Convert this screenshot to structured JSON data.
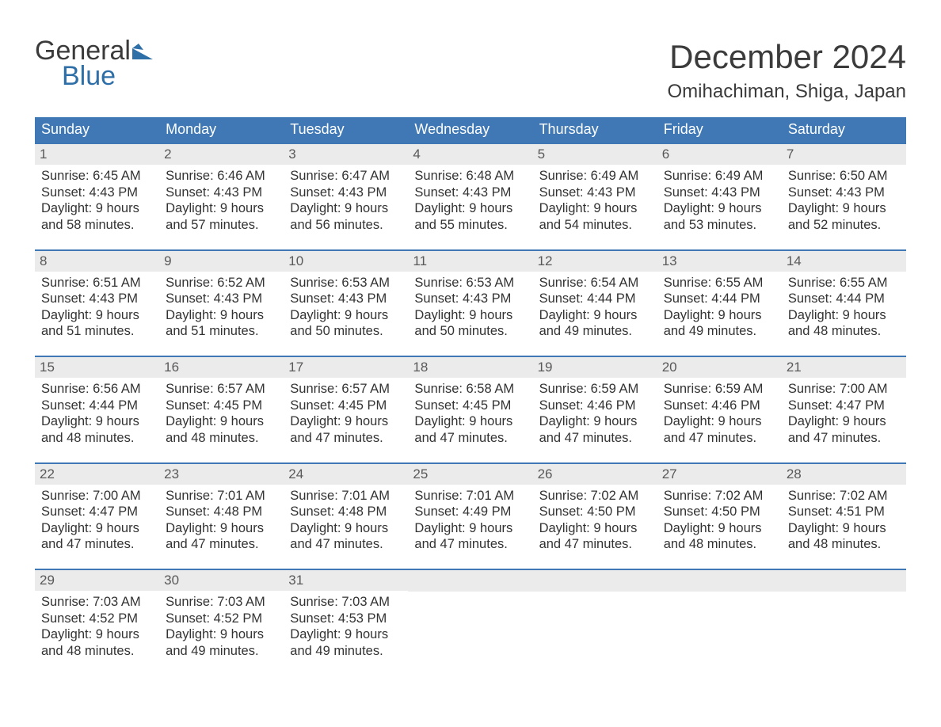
{
  "logo": {
    "line1": "General",
    "line2": "Blue",
    "mark_color": "#2f6fa8",
    "text_color_dark": "#3b3b3b",
    "text_color_accent": "#2f6fa8"
  },
  "title": "December 2024",
  "location": "Omihachiman, Shiga, Japan",
  "colors": {
    "accent": "#3f78b5",
    "header_text": "#ffffff",
    "daynum_bg": "#ebebeb",
    "daynum_text": "#595959",
    "body_text": "#333333",
    "page_bg": "#ffffff"
  },
  "typography": {
    "title_fontsize": 42,
    "location_fontsize": 24,
    "header_fontsize": 18,
    "cell_fontsize": 16.5,
    "daynum_fontsize": 17
  },
  "columns": [
    "Sunday",
    "Monday",
    "Tuesday",
    "Wednesday",
    "Thursday",
    "Friday",
    "Saturday"
  ],
  "field_labels": {
    "sunrise": "Sunrise",
    "sunset": "Sunset",
    "daylight_prefix": "Daylight",
    "daylight_unit_line1": "hours",
    "daylight_unit_line2_prefix": "and",
    "daylight_unit_line2_suffix": "minutes."
  },
  "weeks": [
    [
      {
        "day": 1,
        "sunrise": "6:45 AM",
        "sunset": "4:43 PM",
        "daylight": "9 hours and 58 minutes."
      },
      {
        "day": 2,
        "sunrise": "6:46 AM",
        "sunset": "4:43 PM",
        "daylight": "9 hours and 57 minutes."
      },
      {
        "day": 3,
        "sunrise": "6:47 AM",
        "sunset": "4:43 PM",
        "daylight": "9 hours and 56 minutes."
      },
      {
        "day": 4,
        "sunrise": "6:48 AM",
        "sunset": "4:43 PM",
        "daylight": "9 hours and 55 minutes."
      },
      {
        "day": 5,
        "sunrise": "6:49 AM",
        "sunset": "4:43 PM",
        "daylight": "9 hours and 54 minutes."
      },
      {
        "day": 6,
        "sunrise": "6:49 AM",
        "sunset": "4:43 PM",
        "daylight": "9 hours and 53 minutes."
      },
      {
        "day": 7,
        "sunrise": "6:50 AM",
        "sunset": "4:43 PM",
        "daylight": "9 hours and 52 minutes."
      }
    ],
    [
      {
        "day": 8,
        "sunrise": "6:51 AM",
        "sunset": "4:43 PM",
        "daylight": "9 hours and 51 minutes."
      },
      {
        "day": 9,
        "sunrise": "6:52 AM",
        "sunset": "4:43 PM",
        "daylight": "9 hours and 51 minutes."
      },
      {
        "day": 10,
        "sunrise": "6:53 AM",
        "sunset": "4:43 PM",
        "daylight": "9 hours and 50 minutes."
      },
      {
        "day": 11,
        "sunrise": "6:53 AM",
        "sunset": "4:43 PM",
        "daylight": "9 hours and 50 minutes."
      },
      {
        "day": 12,
        "sunrise": "6:54 AM",
        "sunset": "4:44 PM",
        "daylight": "9 hours and 49 minutes."
      },
      {
        "day": 13,
        "sunrise": "6:55 AM",
        "sunset": "4:44 PM",
        "daylight": "9 hours and 49 minutes."
      },
      {
        "day": 14,
        "sunrise": "6:55 AM",
        "sunset": "4:44 PM",
        "daylight": "9 hours and 48 minutes."
      }
    ],
    [
      {
        "day": 15,
        "sunrise": "6:56 AM",
        "sunset": "4:44 PM",
        "daylight": "9 hours and 48 minutes."
      },
      {
        "day": 16,
        "sunrise": "6:57 AM",
        "sunset": "4:45 PM",
        "daylight": "9 hours and 48 minutes."
      },
      {
        "day": 17,
        "sunrise": "6:57 AM",
        "sunset": "4:45 PM",
        "daylight": "9 hours and 47 minutes."
      },
      {
        "day": 18,
        "sunrise": "6:58 AM",
        "sunset": "4:45 PM",
        "daylight": "9 hours and 47 minutes."
      },
      {
        "day": 19,
        "sunrise": "6:59 AM",
        "sunset": "4:46 PM",
        "daylight": "9 hours and 47 minutes."
      },
      {
        "day": 20,
        "sunrise": "6:59 AM",
        "sunset": "4:46 PM",
        "daylight": "9 hours and 47 minutes."
      },
      {
        "day": 21,
        "sunrise": "7:00 AM",
        "sunset": "4:47 PM",
        "daylight": "9 hours and 47 minutes."
      }
    ],
    [
      {
        "day": 22,
        "sunrise": "7:00 AM",
        "sunset": "4:47 PM",
        "daylight": "9 hours and 47 minutes."
      },
      {
        "day": 23,
        "sunrise": "7:01 AM",
        "sunset": "4:48 PM",
        "daylight": "9 hours and 47 minutes."
      },
      {
        "day": 24,
        "sunrise": "7:01 AM",
        "sunset": "4:48 PM",
        "daylight": "9 hours and 47 minutes."
      },
      {
        "day": 25,
        "sunrise": "7:01 AM",
        "sunset": "4:49 PM",
        "daylight": "9 hours and 47 minutes."
      },
      {
        "day": 26,
        "sunrise": "7:02 AM",
        "sunset": "4:50 PM",
        "daylight": "9 hours and 47 minutes."
      },
      {
        "day": 27,
        "sunrise": "7:02 AM",
        "sunset": "4:50 PM",
        "daylight": "9 hours and 48 minutes."
      },
      {
        "day": 28,
        "sunrise": "7:02 AM",
        "sunset": "4:51 PM",
        "daylight": "9 hours and 48 minutes."
      }
    ],
    [
      {
        "day": 29,
        "sunrise": "7:03 AM",
        "sunset": "4:52 PM",
        "daylight": "9 hours and 48 minutes."
      },
      {
        "day": 30,
        "sunrise": "7:03 AM",
        "sunset": "4:52 PM",
        "daylight": "9 hours and 49 minutes."
      },
      {
        "day": 31,
        "sunrise": "7:03 AM",
        "sunset": "4:53 PM",
        "daylight": "9 hours and 49 minutes."
      },
      null,
      null,
      null,
      null
    ]
  ]
}
